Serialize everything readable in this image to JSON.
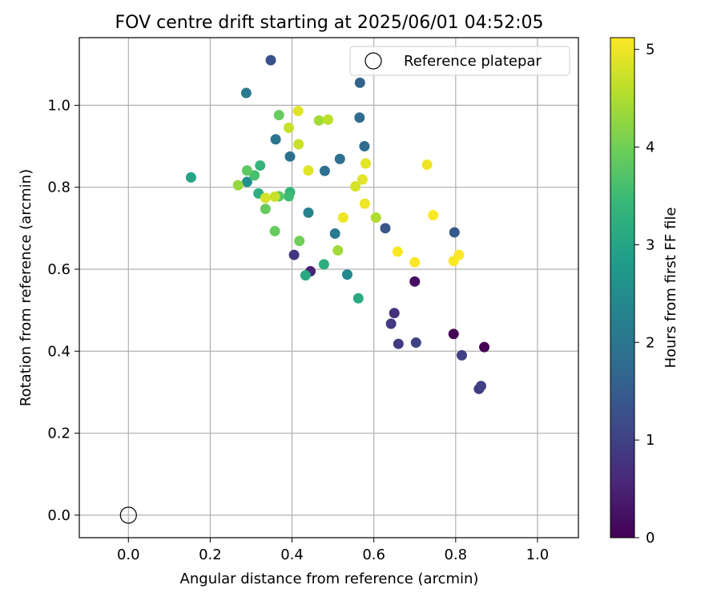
{
  "chart_data": {
    "type": "scatter",
    "title": "FOV centre drift starting at 2025/06/01 04:52:05",
    "xlabel": "Angular distance from reference (arcmin)",
    "ylabel": "Rotation from reference (arcmin)",
    "xlim": [
      -0.12,
      1.1
    ],
    "ylim": [
      -0.055,
      1.165
    ],
    "x_ticks": [
      0.0,
      0.2,
      0.4,
      0.6,
      0.8,
      1.0
    ],
    "x_tick_labels": [
      "0.0",
      "0.2",
      "0.4",
      "0.6",
      "0.8",
      "1.0"
    ],
    "y_ticks": [
      0.0,
      0.2,
      0.4,
      0.6,
      0.8,
      1.0
    ],
    "y_tick_labels": [
      "0.0",
      "0.2",
      "0.4",
      "0.6",
      "0.8",
      "1.0"
    ],
    "grid": true,
    "legend": {
      "position": "top-right",
      "entries": [
        "Reference platepar"
      ]
    },
    "colorbar": {
      "label": "Hours from first FF file",
      "range": [
        0,
        5.12
      ],
      "ticks": [
        0,
        1,
        2,
        3,
        4,
        5
      ],
      "tick_labels": [
        "0",
        "1",
        "2",
        "3",
        "4",
        "5"
      ],
      "colormap": "viridis"
    },
    "reference": {
      "x": 0.0,
      "y": 0.0,
      "label": "Reference platepar"
    },
    "series": [
      {
        "points": [
          {
            "x": 0.87,
            "y": 0.41,
            "c": 0.0
          },
          {
            "x": 0.795,
            "y": 0.442,
            "c": 0.05
          },
          {
            "x": 0.7,
            "y": 0.57,
            "c": 0.2
          },
          {
            "x": 0.445,
            "y": 0.595,
            "c": 0.5
          },
          {
            "x": 0.65,
            "y": 0.493,
            "c": 0.7
          },
          {
            "x": 0.405,
            "y": 0.635,
            "c": 0.8
          },
          {
            "x": 0.642,
            "y": 0.467,
            "c": 0.9
          },
          {
            "x": 0.66,
            "y": 0.418,
            "c": 0.9
          },
          {
            "x": 0.703,
            "y": 0.421,
            "c": 1.0
          },
          {
            "x": 0.857,
            "y": 0.308,
            "c": 0.9
          },
          {
            "x": 0.862,
            "y": 0.315,
            "c": 1.0
          },
          {
            "x": 0.815,
            "y": 0.39,
            "c": 1.0
          },
          {
            "x": 0.348,
            "y": 1.11,
            "c": 1.3
          },
          {
            "x": 0.628,
            "y": 0.7,
            "c": 1.4
          },
          {
            "x": 0.797,
            "y": 0.69,
            "c": 1.4
          },
          {
            "x": 0.566,
            "y": 1.055,
            "c": 1.6
          },
          {
            "x": 0.565,
            "y": 0.97,
            "c": 1.8
          },
          {
            "x": 0.577,
            "y": 0.9,
            "c": 1.8
          },
          {
            "x": 0.517,
            "y": 0.869,
            "c": 1.9
          },
          {
            "x": 0.48,
            "y": 0.84,
            "c": 1.9
          },
          {
            "x": 0.395,
            "y": 0.875,
            "c": 1.9
          },
          {
            "x": 0.36,
            "y": 0.917,
            "c": 2.0
          },
          {
            "x": 0.288,
            "y": 1.03,
            "c": 2.1
          },
          {
            "x": 0.505,
            "y": 0.687,
            "c": 2.1
          },
          {
            "x": 0.44,
            "y": 0.738,
            "c": 2.3
          },
          {
            "x": 0.535,
            "y": 0.587,
            "c": 2.4
          },
          {
            "x": 0.29,
            "y": 0.813,
            "c": 2.6
          },
          {
            "x": 0.153,
            "y": 0.824,
            "c": 3.0
          },
          {
            "x": 0.433,
            "y": 0.585,
            "c": 3.1
          },
          {
            "x": 0.562,
            "y": 0.529,
            "c": 3.1
          },
          {
            "x": 0.478,
            "y": 0.612,
            "c": 3.2
          },
          {
            "x": 0.318,
            "y": 0.785,
            "c": 3.2
          },
          {
            "x": 0.322,
            "y": 0.853,
            "c": 3.4
          },
          {
            "x": 0.308,
            "y": 0.829,
            "c": 3.6
          },
          {
            "x": 0.395,
            "y": 0.788,
            "c": 3.4
          },
          {
            "x": 0.392,
            "y": 0.778,
            "c": 3.5
          },
          {
            "x": 0.368,
            "y": 0.778,
            "c": 3.8
          },
          {
            "x": 0.29,
            "y": 0.841,
            "c": 3.8
          },
          {
            "x": 0.335,
            "y": 0.747,
            "c": 3.9
          },
          {
            "x": 0.358,
            "y": 0.693,
            "c": 3.9
          },
          {
            "x": 0.418,
            "y": 0.669,
            "c": 4.0
          },
          {
            "x": 0.368,
            "y": 0.976,
            "c": 3.9
          },
          {
            "x": 0.268,
            "y": 0.805,
            "c": 4.3
          },
          {
            "x": 0.512,
            "y": 0.646,
            "c": 4.4
          },
          {
            "x": 0.466,
            "y": 0.963,
            "c": 4.4
          },
          {
            "x": 0.488,
            "y": 0.965,
            "c": 4.6
          },
          {
            "x": 0.392,
            "y": 0.945,
            "c": 4.7
          },
          {
            "x": 0.416,
            "y": 0.905,
            "c": 4.7
          },
          {
            "x": 0.605,
            "y": 0.726,
            "c": 4.5
          },
          {
            "x": 0.335,
            "y": 0.774,
            "c": 4.8
          },
          {
            "x": 0.358,
            "y": 0.777,
            "c": 4.7
          },
          {
            "x": 0.415,
            "y": 0.986,
            "c": 4.9
          },
          {
            "x": 0.44,
            "y": 0.841,
            "c": 4.9
          },
          {
            "x": 0.555,
            "y": 0.802,
            "c": 4.8
          },
          {
            "x": 0.572,
            "y": 0.819,
            "c": 4.9
          },
          {
            "x": 0.58,
            "y": 0.858,
            "c": 4.9
          },
          {
            "x": 0.525,
            "y": 0.726,
            "c": 5.0
          },
          {
            "x": 0.578,
            "y": 0.76,
            "c": 5.0
          },
          {
            "x": 0.658,
            "y": 0.643,
            "c": 5.1
          },
          {
            "x": 0.7,
            "y": 0.617,
            "c": 5.1
          },
          {
            "x": 0.73,
            "y": 0.855,
            "c": 5.0
          },
          {
            "x": 0.745,
            "y": 0.732,
            "c": 5.1
          },
          {
            "x": 0.795,
            "y": 0.62,
            "c": 5.1
          },
          {
            "x": 0.808,
            "y": 0.635,
            "c": 5.1
          }
        ]
      }
    ],
    "viridis_stops": [
      "#440154",
      "#482878",
      "#3e4989",
      "#31688e",
      "#26828e",
      "#1f9e89",
      "#35b779",
      "#6ece58",
      "#b5de2b",
      "#fde725"
    ]
  }
}
